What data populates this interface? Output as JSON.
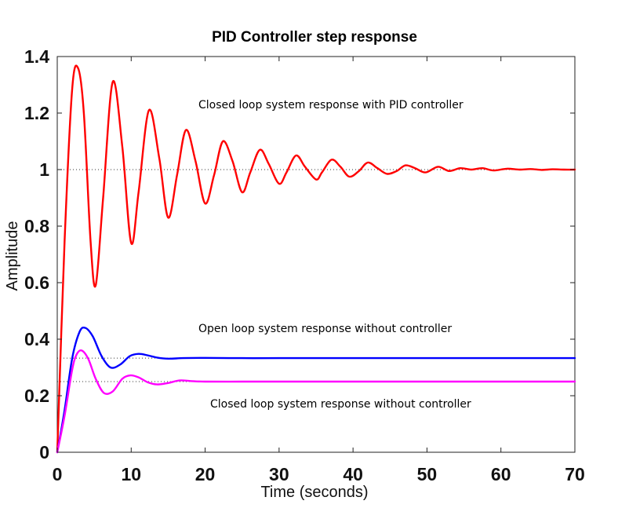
{
  "chart_data": {
    "type": "line",
    "title": "PID Controller step response",
    "xlabel": "Time (seconds)",
    "ylabel": "Amplitude",
    "xlim": [
      0,
      70
    ],
    "ylim": [
      0,
      1.4
    ],
    "x_ticks": [
      "0",
      "10",
      "20",
      "30",
      "40",
      "50",
      "60",
      "70"
    ],
    "y_ticks": [
      "0",
      "0.2",
      "0.4",
      "0.6",
      "0.8",
      "1",
      "1.2",
      "1.4"
    ],
    "grid": false,
    "reference_lines": [
      1.0,
      0.333,
      0.25
    ],
    "annotations": [
      "Closed loop system response with PID controller",
      "Open loop system response without controller",
      "Closed loop system response without controller"
    ],
    "series": [
      {
        "color": "#ff0000",
        "x": [
          0,
          1,
          2,
          2.8,
          3.6,
          4.5,
          5.2,
          6.2,
          7.5,
          8.8,
          10,
          11,
          12.4,
          13.8,
          15,
          16.2,
          17.4,
          18.7,
          20,
          21.2,
          22.4,
          23.7,
          25,
          26.1,
          27.4,
          28.6,
          30,
          31,
          32.3,
          33.5,
          35,
          35.8,
          37.1,
          38.3,
          39.5,
          40.8,
          42,
          43.3,
          44.6,
          45.9,
          47.1,
          48.4,
          49.8,
          51.5,
          53,
          54.5,
          56,
          57.5,
          59,
          60.8,
          62.5,
          64,
          65.5,
          67,
          68.5,
          70
        ],
        "y": [
          0,
          0.75,
          1.28,
          1.36,
          1.2,
          0.75,
          0.59,
          0.9,
          1.31,
          1.08,
          0.74,
          0.92,
          1.21,
          1.04,
          0.83,
          0.98,
          1.14,
          1.03,
          0.88,
          0.98,
          1.1,
          1.03,
          0.92,
          0.99,
          1.07,
          1.02,
          0.95,
          0.99,
          1.05,
          1.01,
          0.965,
          0.99,
          1.035,
          1.01,
          0.975,
          0.995,
          1.025,
          1.005,
          0.985,
          0.995,
          1.015,
          1.005,
          0.99,
          1.01,
          0.995,
          1.005,
          1.0,
          1.005,
          0.997,
          1.003,
          1.0,
          1.002,
          0.999,
          1.001,
          1.0,
          1.0
        ]
      },
      {
        "color": "#0000ff",
        "x": [
          0,
          1,
          2,
          3,
          3.8,
          4.8,
          6,
          7.2,
          8.5,
          9.8,
          11,
          12.2,
          13.5,
          15,
          17,
          20,
          25,
          30,
          40,
          50,
          60,
          70
        ],
        "y": [
          0,
          0.15,
          0.33,
          0.425,
          0.44,
          0.41,
          0.34,
          0.3,
          0.31,
          0.34,
          0.348,
          0.343,
          0.335,
          0.331,
          0.333,
          0.334,
          0.333,
          0.333,
          0.333,
          0.333,
          0.333,
          0.333
        ]
      },
      {
        "color": "#ff00ff",
        "x": [
          0,
          1,
          2,
          2.6,
          3.3,
          4.2,
          5.2,
          6.3,
          7.5,
          8.8,
          9.9,
          11,
          12.2,
          13.5,
          15,
          16.5,
          18,
          20,
          25,
          30,
          40,
          50,
          60,
          70
        ],
        "y": [
          0,
          0.13,
          0.29,
          0.345,
          0.36,
          0.33,
          0.26,
          0.21,
          0.215,
          0.26,
          0.272,
          0.265,
          0.248,
          0.24,
          0.245,
          0.254,
          0.252,
          0.25,
          0.25,
          0.25,
          0.25,
          0.25,
          0.25,
          0.25
        ]
      }
    ]
  }
}
